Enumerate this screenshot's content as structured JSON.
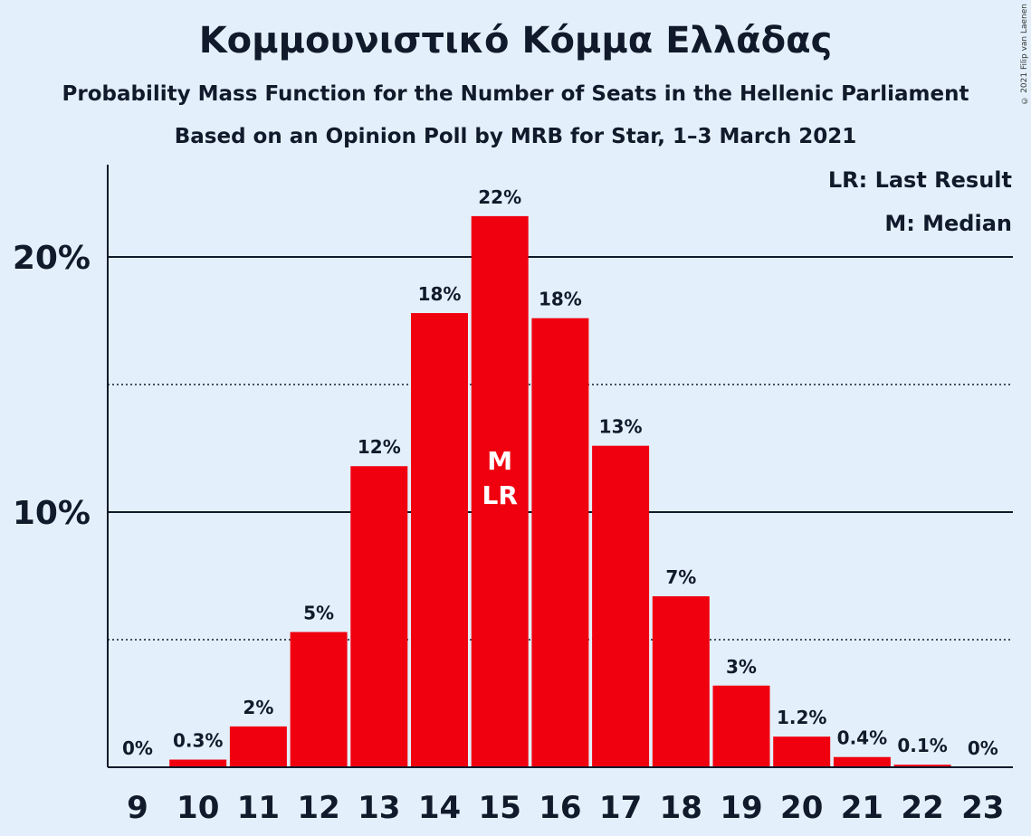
{
  "title": "Κομμουνιστικό Κόμμα Ελλάδας",
  "subtitle1": "Probability Mass Function for the Number of Seats in the Hellenic Parliament",
  "subtitle2": "Based on an Opinion Poll by MRB for Star, 1–3 March 2021",
  "copyright": "© 2021 Filip van Laenen",
  "legend": {
    "lr": "LR: Last Result",
    "m": "M: Median"
  },
  "colors": {
    "background": "#e3f0fc",
    "bar": "#f0000f",
    "text": "#111a2a"
  },
  "chart_data": {
    "type": "bar",
    "categories": [
      "9",
      "10",
      "11",
      "12",
      "13",
      "14",
      "15",
      "16",
      "17",
      "18",
      "19",
      "20",
      "21",
      "22",
      "23"
    ],
    "values": [
      0,
      0.3,
      1.6,
      5.3,
      11.8,
      17.8,
      21.6,
      17.6,
      12.6,
      6.7,
      3.2,
      1.2,
      0.4,
      0.1,
      0
    ],
    "labels": [
      "0%",
      "0.3%",
      "2%",
      "5%",
      "12%",
      "18%",
      "22%",
      "18%",
      "13%",
      "7%",
      "3%",
      "1.2%",
      "0.4%",
      "0.1%",
      "0%"
    ],
    "y_ticks": [
      {
        "value": 10,
        "label": "10%"
      },
      {
        "value": 20,
        "label": "20%"
      }
    ],
    "minor_gridlines": [
      5,
      15
    ],
    "ylim": [
      0,
      23.5
    ],
    "markers": {
      "category": "15",
      "lines": [
        "M",
        "LR"
      ]
    },
    "legend_position": "top-right"
  }
}
